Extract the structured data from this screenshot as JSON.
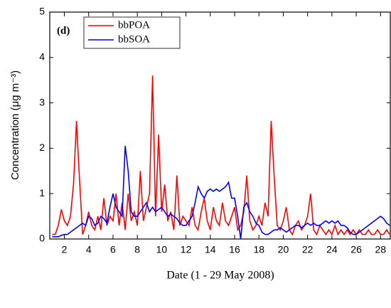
{
  "chart_data": {
    "type": "line",
    "annotation": "(d)",
    "xlabel": "Date (1 - 29 May 2008)",
    "ylabel": "Concentration (μg m⁻³)",
    "x": [
      1,
      1.25,
      1.5,
      1.75,
      2,
      2.25,
      2.5,
      2.75,
      3,
      3.25,
      3.5,
      3.75,
      4,
      4.25,
      4.5,
      4.75,
      5,
      5.25,
      5.5,
      5.75,
      6,
      6.25,
      6.5,
      6.75,
      7,
      7.25,
      7.5,
      7.75,
      8,
      8.25,
      8.5,
      8.75,
      9,
      9.25,
      9.5,
      9.75,
      10,
      10.25,
      10.5,
      10.75,
      11,
      11.25,
      11.5,
      11.75,
      12,
      12.25,
      12.5,
      12.75,
      13,
      13.25,
      13.5,
      13.75,
      14,
      14.25,
      14.5,
      14.75,
      15,
      15.25,
      15.5,
      15.75,
      16,
      16.25,
      16.5,
      16.75,
      17,
      17.25,
      17.5,
      17.75,
      18,
      18.25,
      18.5,
      18.75,
      19,
      19.25,
      19.5,
      19.75,
      20,
      20.25,
      20.5,
      20.75,
      21,
      21.25,
      21.5,
      21.75,
      22,
      22.25,
      22.5,
      22.75,
      23,
      23.25,
      23.5,
      23.75,
      24,
      24.25,
      24.5,
      24.75,
      25,
      25.25,
      25.5,
      25.75,
      26,
      26.25,
      26.5,
      26.75,
      27,
      27.25,
      27.5,
      27.75,
      28,
      28.25,
      28.5,
      28.75
    ],
    "series": [
      {
        "name": "bbPOA",
        "color": "#ff0000",
        "values": [
          0.1,
          0.1,
          0.3,
          0.65,
          0.4,
          0.3,
          0.5,
          1.2,
          2.6,
          1.3,
          0.1,
          0.3,
          0.6,
          0.3,
          0.2,
          0.5,
          0.2,
          0.9,
          0.3,
          0.5,
          0.4,
          1.0,
          0.3,
          0.8,
          0.2,
          1.0,
          0.4,
          0.6,
          0.3,
          1.5,
          0.4,
          0.7,
          1.0,
          3.6,
          0.5,
          2.3,
          0.6,
          1.2,
          0.4,
          0.6,
          0.2,
          1.4,
          0.3,
          0.5,
          0.4,
          0.3,
          0.7,
          0.3,
          0.2,
          0.6,
          0.9,
          0.4,
          0.2,
          0.7,
          0.4,
          0.3,
          0.8,
          0.4,
          0.3,
          0.5,
          0.7,
          0.2,
          0.3,
          0.6,
          1.4,
          0.4,
          0.2,
          0.3,
          0.5,
          0.3,
          0.8,
          0.5,
          2.6,
          1.4,
          0.3,
          0.2,
          0.4,
          0.7,
          0.2,
          0.1,
          0.3,
          0.4,
          0.2,
          0.3,
          0.5,
          1.0,
          0.2,
          0.1,
          0.3,
          0.2,
          0.1,
          0.2,
          0.1,
          0.3,
          0.1,
          0.2,
          0.1,
          0.2,
          0.1,
          0.2,
          0.1,
          0.2,
          0.1,
          0.1,
          0.2,
          0.1,
          0.1,
          0.2,
          0.1,
          0.1,
          0.2,
          0.1
        ]
      },
      {
        "name": "bbSOA",
        "color": "#0000ff",
        "values": [
          0.05,
          0.05,
          0.05,
          0.08,
          0.1,
          0.1,
          0.15,
          0.2,
          0.25,
          0.3,
          0.35,
          0.3,
          0.5,
          0.45,
          0.3,
          0.35,
          0.5,
          0.45,
          0.35,
          0.7,
          1.0,
          0.7,
          0.6,
          0.5,
          2.05,
          1.5,
          0.6,
          0.5,
          0.5,
          0.6,
          0.7,
          0.8,
          0.6,
          0.7,
          0.6,
          0.65,
          0.7,
          0.6,
          0.5,
          0.55,
          0.5,
          0.45,
          0.35,
          0.3,
          0.3,
          0.4,
          0.5,
          0.8,
          1.15,
          1.0,
          0.9,
          1.05,
          1.1,
          1.05,
          1.1,
          1.05,
          1.1,
          1.15,
          1.25,
          0.9,
          0.9,
          0.5,
          0.0,
          0.7,
          0.8,
          0.6,
          0.5,
          0.35,
          0.3,
          0.15,
          0.1,
          0.1,
          0.15,
          0.2,
          0.2,
          0.25,
          0.2,
          0.15,
          0.2,
          0.25,
          0.3,
          0.3,
          0.25,
          0.3,
          0.35,
          0.3,
          0.35,
          0.3,
          0.3,
          0.35,
          0.4,
          0.35,
          0.4,
          0.35,
          0.4,
          0.3,
          0.3,
          0.25,
          0.15,
          0.1,
          0.1,
          0.15,
          0.2,
          0.25,
          0.3,
          0.35,
          0.4,
          0.45,
          0.5,
          0.45,
          0.35,
          0.3
        ]
      }
    ],
    "xlim": [
      0.8,
      28.8
    ],
    "xticks": [
      2,
      4,
      6,
      8,
      10,
      12,
      14,
      16,
      18,
      20,
      22,
      24,
      26,
      28
    ],
    "ylim": [
      0,
      5
    ],
    "yticks": [
      0,
      1,
      2,
      3,
      4,
      5
    ],
    "legend": "upper left"
  }
}
